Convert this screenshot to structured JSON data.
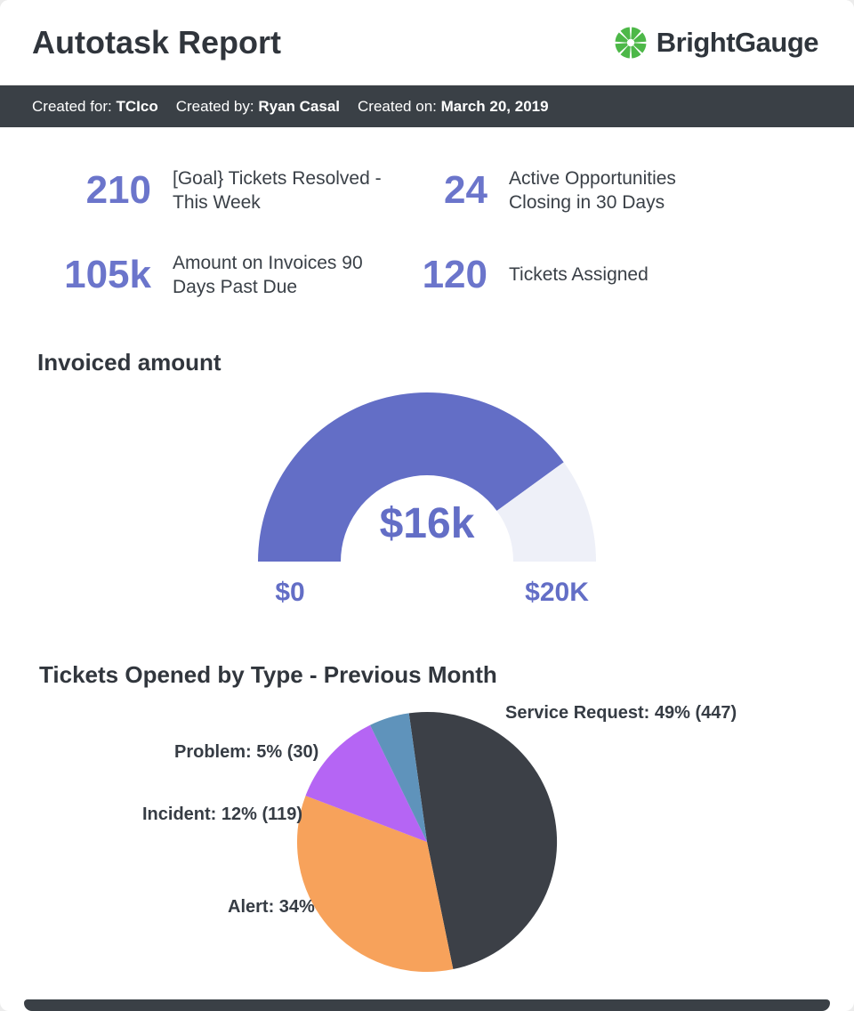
{
  "colors": {
    "accent_purple": "#6B75CB",
    "dark_text": "#31363D",
    "bar_dark": "#3A4046",
    "brand_green": "#4DB848"
  },
  "header": {
    "title": "Autotask Report",
    "brand": "BrightGauge"
  },
  "meta": {
    "created_for_label": "Created for:",
    "created_for_value": "TCIco",
    "created_by_label": "Created by:",
    "created_by_value": "Ryan Casal",
    "created_on_label": "Created on:",
    "created_on_value": "March 20, 2019"
  },
  "kpis": [
    {
      "value": "210",
      "label": "[Goal} Tickets Resolved - This Week"
    },
    {
      "value": "24",
      "label": "Active Opportunities Closing in 30 Days"
    },
    {
      "value": "105k",
      "label": "Amount on Invoices 90 Days Past Due"
    },
    {
      "value": "120",
      "label": "Tickets Assigned"
    }
  ],
  "chart_data": [
    {
      "type": "gauge",
      "title": "Invoiced amount",
      "value": 16000,
      "display_value": "$16k",
      "min": 0,
      "max": 20000,
      "min_label": "$0",
      "max_label": "$20K",
      "fill_color": "#636EC6",
      "track_color": "#EEF0F8"
    },
    {
      "type": "pie",
      "title": "Tickets Opened by Type - Previous Month",
      "start_angle": -8,
      "slices": [
        {
          "name": "Service Request",
          "percent": 49,
          "count": 447,
          "label": "Service Request: 49% (447)",
          "color": "#3C4047"
        },
        {
          "name": "Alert",
          "percent": 34,
          "label": "Alert: 34%",
          "color": "#F7A25B"
        },
        {
          "name": "Incident",
          "percent": 12,
          "count": 119,
          "label": "Incident: 12% (119)",
          "color": "#B565F4"
        },
        {
          "name": "Problem",
          "percent": 5,
          "count": 30,
          "label": "Problem: 5% (30)",
          "color": "#5F93BB"
        }
      ]
    }
  ]
}
